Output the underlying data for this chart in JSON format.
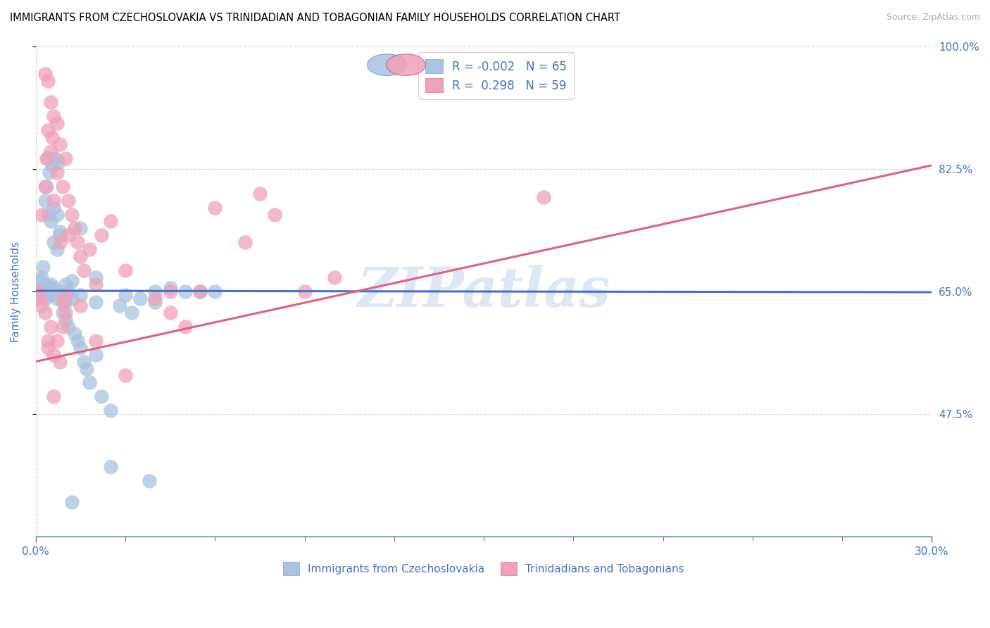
{
  "title": "IMMIGRANTS FROM CZECHOSLOVAKIA VS TRINIDADIAN AND TOBAGONIAN FAMILY HOUSEHOLDS CORRELATION CHART",
  "source": "Source: ZipAtlas.com",
  "xlabel_left": "Immigrants from Czechoslovakia",
  "xlabel_right": "Trinidadians and Tobagonians",
  "ylabel": "Family Households",
  "xlim": [
    0.0,
    30.0
  ],
  "ylim": [
    30.0,
    100.0
  ],
  "yticks": [
    47.5,
    65.0,
    82.5,
    100.0
  ],
  "blue_R": -0.002,
  "blue_N": 65,
  "pink_R": 0.298,
  "pink_N": 59,
  "blue_color": "#a8c4e0",
  "pink_color": "#f0a0b8",
  "blue_line_color": "#4472c4",
  "pink_line_color": "#e06080",
  "axis_color": "#4472c4",
  "grid_color": "#c8d4e8",
  "watermark_color": "#c8d8f0",
  "blue_line_y0": 65.1,
  "blue_line_y1": 64.9,
  "pink_line_y0": 55.0,
  "pink_line_y1": 83.0,
  "blue_scatter_x": [
    0.1,
    0.15,
    0.2,
    0.2,
    0.25,
    0.3,
    0.3,
    0.3,
    0.35,
    0.4,
    0.4,
    0.4,
    0.45,
    0.5,
    0.5,
    0.5,
    0.55,
    0.6,
    0.6,
    0.6,
    0.65,
    0.7,
    0.7,
    0.7,
    0.75,
    0.8,
    0.8,
    0.9,
    0.9,
    1.0,
    1.0,
    1.0,
    1.1,
    1.1,
    1.2,
    1.2,
    1.3,
    1.4,
    1.5,
    1.6,
    1.7,
    1.8,
    2.0,
    2.0,
    2.2,
    2.5,
    2.8,
    3.0,
    3.2,
    3.5,
    4.0,
    4.0,
    4.5,
    5.0,
    5.5,
    6.0,
    1.5,
    2.0,
    0.5,
    0.8,
    1.0,
    1.5,
    2.5,
    3.8,
    1.2
  ],
  "blue_scatter_y": [
    65.0,
    66.5,
    65.5,
    67.0,
    68.5,
    64.0,
    66.0,
    78.0,
    80.0,
    65.0,
    76.0,
    84.0,
    82.0,
    64.5,
    66.0,
    75.0,
    83.0,
    65.5,
    72.0,
    77.0,
    84.0,
    64.0,
    71.0,
    76.0,
    83.5,
    65.0,
    73.0,
    62.0,
    64.5,
    61.0,
    64.0,
    66.0,
    60.0,
    65.0,
    64.0,
    66.5,
    59.0,
    58.0,
    57.0,
    55.0,
    54.0,
    52.0,
    56.0,
    63.5,
    50.0,
    48.0,
    63.0,
    64.5,
    62.0,
    64.0,
    65.0,
    63.5,
    65.5,
    65.0,
    65.0,
    65.0,
    74.0,
    67.0,
    65.5,
    73.5,
    63.5,
    64.5,
    40.0,
    38.0,
    35.0
  ],
  "pink_scatter_x": [
    0.1,
    0.15,
    0.2,
    0.2,
    0.3,
    0.3,
    0.35,
    0.4,
    0.4,
    0.5,
    0.5,
    0.55,
    0.6,
    0.6,
    0.7,
    0.7,
    0.8,
    0.8,
    0.9,
    0.9,
    1.0,
    1.0,
    1.1,
    1.2,
    1.3,
    1.4,
    1.5,
    1.6,
    1.8,
    2.0,
    2.2,
    2.5,
    3.0,
    4.0,
    4.5,
    5.0,
    5.5,
    6.0,
    7.0,
    8.0,
    9.0,
    10.0,
    0.5,
    0.6,
    0.7,
    0.4,
    0.3,
    1.0,
    1.5,
    2.0,
    3.0,
    0.8,
    0.6,
    0.9,
    1.1,
    4.5,
    7.5,
    17.0,
    0.4
  ],
  "pink_scatter_y": [
    65.0,
    64.0,
    63.0,
    76.0,
    62.0,
    80.0,
    84.0,
    58.0,
    88.0,
    60.0,
    85.0,
    87.0,
    56.0,
    78.0,
    58.0,
    82.0,
    55.0,
    86.0,
    60.0,
    80.0,
    62.0,
    84.0,
    78.0,
    76.0,
    74.0,
    72.0,
    70.0,
    68.0,
    71.0,
    66.0,
    73.0,
    75.0,
    68.0,
    64.0,
    62.0,
    60.0,
    65.0,
    77.0,
    72.0,
    76.0,
    65.0,
    67.0,
    92.0,
    90.0,
    89.0,
    95.0,
    96.0,
    64.5,
    63.0,
    58.0,
    53.0,
    72.0,
    50.0,
    63.5,
    73.0,
    65.0,
    79.0,
    78.5,
    57.0
  ]
}
